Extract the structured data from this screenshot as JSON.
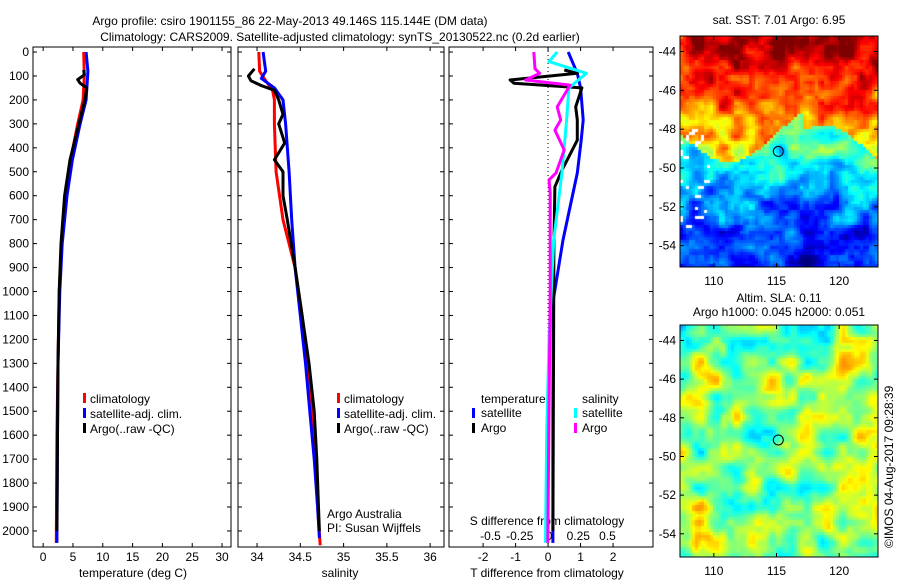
{
  "title": {
    "line1": "Argo profile: csiro 1901155_86 22-May-2013 49.146S 115.144E (DM data)",
    "line2": "Climatology: CARS2009. Satellite-adjusted climatology: synTS_20130522.nc (0.2d earlier)"
  },
  "colors": {
    "climatology": "#ff0000",
    "satellite": "#0000ff",
    "argo": "#000000",
    "s_satellite": "#00ffff",
    "s_argo": "#ff00ff"
  },
  "depth_ticks": [
    "0",
    "100",
    "200",
    "300",
    "400",
    "500",
    "600",
    "700",
    "800",
    "900",
    "1000",
    "1100",
    "1200",
    "1300",
    "1400",
    "1500",
    "1600",
    "1700",
    "1800",
    "1900",
    "2000"
  ],
  "credits": {
    "line1": "Argo Australia",
    "line2": "PI: Susan Wijffels"
  },
  "watermark": "©IMOS 04-Aug-2017 09:28:39",
  "chart_data": [
    {
      "type": "line",
      "title": "",
      "xlabel": "temperature (deg C)",
      "ylabel": "",
      "xlim": [
        -1.7,
        31.5
      ],
      "ylim": [
        2067,
        -21
      ],
      "xticks": [
        "0",
        "5",
        "10",
        "15",
        "20",
        "25",
        "30"
      ],
      "legend": [
        "climatology",
        "satellite-adj. clim.",
        "Argo(..raw -QC)"
      ],
      "legend_position": "lower-right",
      "series": [
        {
          "name": "climatology",
          "depth": [
            0,
            100,
            200,
            300,
            450,
            600,
            800,
            1000,
            1300,
            1600,
            2050
          ],
          "values": [
            6.8,
            6.9,
            6.7,
            5.8,
            4.6,
            3.8,
            3.1,
            2.7,
            2.5,
            2.3,
            2.2
          ]
        },
        {
          "name": "satellite-adj. clim.",
          "depth": [
            0,
            80,
            120,
            200,
            300,
            450,
            600,
            800,
            1000,
            1300,
            1600,
            2050
          ],
          "values": [
            7.2,
            7.5,
            7.4,
            7.2,
            6.2,
            4.9,
            4.0,
            3.2,
            2.8,
            2.5,
            2.4,
            2.3
          ]
        },
        {
          "name": "Argo(..raw -QC)",
          "depth": [
            75,
            95,
            115,
            130,
            150,
            200,
            300,
            450,
            600,
            800,
            1000,
            1300,
            1600,
            2000
          ],
          "values": [
            6.8,
            6.9,
            5.8,
            6.2,
            7.3,
            7.0,
            6.0,
            4.5,
            3.6,
            3.0,
            2.7,
            2.5,
            2.4,
            2.3
          ]
        }
      ]
    },
    {
      "type": "line",
      "xlabel": "salinity",
      "xlim": [
        33.78,
        36.16
      ],
      "ylim": [
        2067,
        -21
      ],
      "xticks": [
        "34",
        "34.5",
        "35",
        "35.5",
        "36"
      ],
      "legend": [
        "climatology",
        "satellite-adj. clim.",
        "Argo(..raw -QC)"
      ],
      "legend_position": "lower-right",
      "series": [
        {
          "name": "climatology",
          "depth": [
            0,
            80,
            120,
            160,
            200,
            300,
            500,
            700,
            900,
            1100,
            1300,
            1500,
            1700,
            1900,
            2060
          ],
          "values": [
            34.02,
            34.03,
            34.1,
            34.18,
            34.2,
            34.2,
            34.22,
            34.3,
            34.44,
            34.52,
            34.58,
            34.63,
            34.67,
            34.7,
            34.73
          ]
        },
        {
          "name": "satellite-adj. clim.",
          "depth": [
            0,
            80,
            110,
            150,
            200,
            300,
            500,
            700,
            900,
            1100,
            1300,
            1500,
            1700,
            1900,
            2030
          ],
          "values": [
            34.07,
            34.1,
            34.05,
            34.2,
            34.3,
            34.33,
            34.37,
            34.4,
            34.44,
            34.5,
            34.56,
            34.61,
            34.66,
            34.7,
            34.72
          ]
        },
        {
          "name": "Argo(..raw -QC)",
          "depth": [
            70,
            100,
            120,
            140,
            160,
            200,
            260,
            300,
            380,
            450,
            500,
            600,
            700,
            900,
            1100,
            1300,
            1500,
            1700,
            1900,
            2000
          ],
          "values": [
            33.97,
            33.9,
            33.93,
            34.05,
            34.2,
            34.25,
            34.3,
            34.25,
            34.32,
            34.2,
            34.3,
            34.3,
            34.35,
            34.44,
            34.52,
            34.6,
            34.66,
            34.69,
            34.71,
            34.72
          ]
        }
      ]
    },
    {
      "type": "line",
      "xlabel": "T difference from climatology",
      "x2label": "S difference from climatology",
      "xlim": [
        -3.05,
        3.23
      ],
      "x2lim": [
        -0.855,
        0.889
      ],
      "ylim": [
        2067,
        -21
      ],
      "xticks": [
        "-2",
        "-1",
        "0",
        "1",
        "2"
      ],
      "x2ticks": [
        "-0.5",
        "-0.25",
        "0",
        "0.25",
        "0.5"
      ],
      "legend": {
        "temperature_header": "temperature",
        "salinity_header": "salinity",
        "t_satellite": "satellite",
        "t_argo": "Argo",
        "s_satellite": "satellite",
        "s_argo": "Argo"
      },
      "legend_position": "lower-center",
      "series": [
        {
          "name": "T satellite",
          "axis": "T",
          "depth": [
            0,
            89,
            150,
            284,
            368,
            505,
            785,
            1035,
            1500,
            2050
          ],
          "values": [
            0.62,
            0.9,
            1.0,
            1.08,
            1.02,
            0.9,
            0.46,
            0.16,
            0.15,
            0.15
          ]
        },
        {
          "name": "T Argo",
          "axis": "T",
          "depth": [
            75,
            89,
            117,
            130,
            150,
            229,
            284,
            368,
            493,
            563,
            800,
            1200,
            2000
          ],
          "values": [
            0.5,
            0.9,
            -1.17,
            -1.05,
            1.04,
            0.85,
            0.9,
            0.9,
            0.43,
            0.21,
            0.18,
            0.17,
            0.15
          ]
        },
        {
          "name": "S satellite",
          "axis": "S",
          "depth": [
            0,
            40,
            89,
            150,
            284,
            505,
            785,
            1200,
            1600,
            2050
          ],
          "values": [
            0.07,
            0.0,
            0.32,
            0.17,
            0.15,
            0.11,
            0.04,
            0.0,
            -0.02,
            -0.03
          ]
        },
        {
          "name": "S Argo",
          "axis": "S",
          "depth": [
            0,
            70,
            89,
            117,
            138,
            229,
            284,
            326,
            409,
            505,
            534,
            589,
            714,
            1000,
            1500,
            2050
          ],
          "values": [
            -0.13,
            -0.12,
            -0.08,
            -0.2,
            0.18,
            0.07,
            0.1,
            0.05,
            0.13,
            0.06,
            0.0,
            0.01,
            0.01,
            0.01,
            0.0,
            -0.01
          ]
        }
      ]
    },
    {
      "type": "heatmap",
      "title": "sat. SST: 7.01 Argo: 6.95",
      "xticks": [
        "110",
        "115",
        "120"
      ],
      "yticks": [
        "-44",
        "-46",
        "-48",
        "-50",
        "-52",
        "-54"
      ],
      "xlim": [
        107.3,
        123.1
      ],
      "ylim": [
        -55.1,
        -43.2
      ],
      "marker": {
        "lon": 115.144,
        "lat": -49.146
      }
    },
    {
      "type": "heatmap",
      "title": "Altim. SLA: 0.11",
      "subtitle": "Argo h1000: 0.045 h2000: 0.051",
      "xticks": [
        "110",
        "115",
        "120"
      ],
      "yticks": [
        "-44",
        "-46",
        "-48",
        "-50",
        "-52",
        "-54"
      ],
      "xlim": [
        107.3,
        123.1
      ],
      "ylim": [
        -55.2,
        -43.2
      ],
      "marker": {
        "lon": 115.144,
        "lat": -49.146
      }
    }
  ]
}
